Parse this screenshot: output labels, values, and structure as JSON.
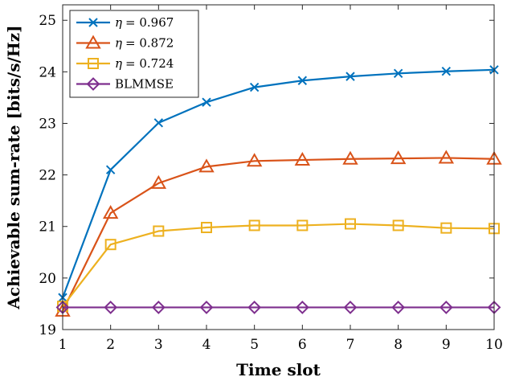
{
  "chart_data": {
    "type": "line",
    "xlabel": "Time slot",
    "ylabel": "Achievable sum-rate [bits/s/Hz]",
    "xlim": [
      1,
      10
    ],
    "ylim": [
      19,
      25.3
    ],
    "xticks": [
      1,
      2,
      3,
      4,
      5,
      6,
      7,
      8,
      9,
      10
    ],
    "yticks": [
      19,
      20,
      21,
      22,
      23,
      24,
      25
    ],
    "grid": false,
    "legend_position": "top-left",
    "x": [
      1,
      2,
      3,
      4,
      5,
      6,
      7,
      8,
      9,
      10
    ],
    "series": [
      {
        "name": "η = 0.967",
        "legend_symbol": "η",
        "legend_value": "= 0.967",
        "color": "#0072BD",
        "marker": "x",
        "values": [
          19.62,
          22.1,
          23.01,
          23.41,
          23.7,
          23.83,
          23.91,
          23.97,
          24.01,
          24.04
        ]
      },
      {
        "name": "η = 0.872",
        "legend_symbol": "η",
        "legend_value": "= 0.872",
        "color": "#D95319",
        "marker": "triangle",
        "values": [
          19.36,
          21.26,
          21.84,
          22.16,
          22.27,
          22.29,
          22.31,
          22.32,
          22.33,
          22.31
        ]
      },
      {
        "name": "η = 0.724",
        "legend_symbol": "η",
        "legend_value": "= 0.724",
        "color": "#EDB120",
        "marker": "square",
        "values": [
          19.45,
          20.65,
          20.91,
          20.98,
          21.02,
          21.02,
          21.05,
          21.02,
          20.97,
          20.96
        ]
      },
      {
        "name": "BLMMSE",
        "legend_symbol": "",
        "legend_value": "BLMMSE",
        "color": "#7E2F8E",
        "marker": "diamond",
        "values": [
          19.43,
          19.43,
          19.43,
          19.43,
          19.43,
          19.43,
          19.43,
          19.43,
          19.43,
          19.43
        ]
      }
    ]
  }
}
